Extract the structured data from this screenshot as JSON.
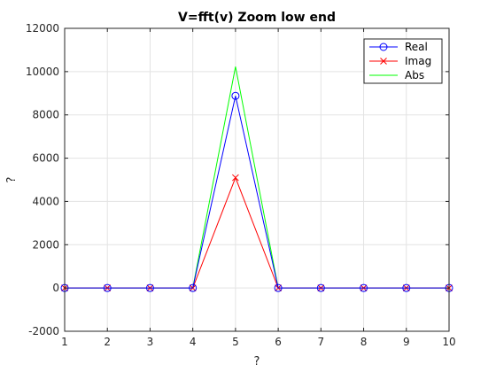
{
  "chart_data": {
    "type": "line",
    "title": "V=fft(v) Zoom low end",
    "xlabel": "?",
    "ylabel": "?",
    "xlim": [
      1,
      10
    ],
    "ylim": [
      -2000,
      12000
    ],
    "xticks": [
      1,
      2,
      3,
      4,
      5,
      6,
      7,
      8,
      9,
      10
    ],
    "yticks": [
      -2000,
      0,
      2000,
      4000,
      6000,
      8000,
      10000,
      12000
    ],
    "grid": true,
    "legend_position": "top-right",
    "x": [
      1,
      2,
      3,
      4,
      5,
      6,
      7,
      8,
      9,
      10
    ],
    "series": [
      {
        "name": "Real",
        "color": "#0000ff",
        "marker": "circle",
        "values": [
          0,
          0,
          0,
          0,
          8880,
          0,
          0,
          0,
          0,
          0
        ]
      },
      {
        "name": "Imag",
        "color": "#ff0000",
        "marker": "x",
        "values": [
          0,
          0,
          0,
          0,
          5100,
          0,
          0,
          0,
          0,
          0
        ]
      },
      {
        "name": "Abs",
        "color": "#00ff00",
        "marker": "none",
        "values": [
          0,
          0,
          0,
          0,
          10230,
          0,
          0,
          0,
          0,
          0
        ]
      }
    ]
  }
}
